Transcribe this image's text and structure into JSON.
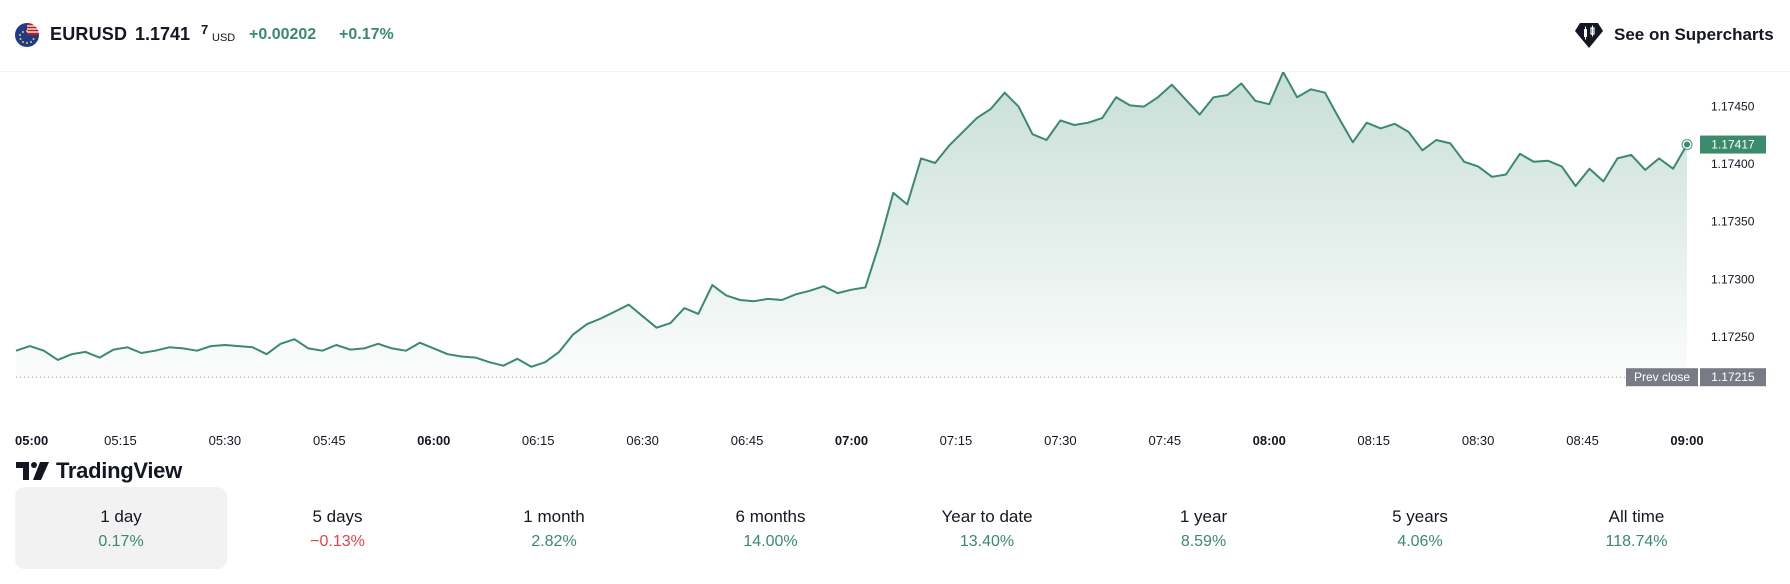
{
  "header": {
    "symbol": "EURUSD",
    "price_main": "1.1741",
    "price_sup": "7",
    "currency": "USD",
    "change_abs": "+0.00202",
    "change_pct": "+0.17%",
    "supercharts_label": "See on Supercharts",
    "flag_icon": "eu-us-flag-icon",
    "supercharts_icon": "supercharts-candle-icon"
  },
  "colors": {
    "line": "#3a8a6c",
    "positive": "#3a8a6c",
    "negative": "#e0444b",
    "last_price_tag": "#3a8a6c",
    "prev_close_tag": "#787b86"
  },
  "logo": {
    "text": "TradingView"
  },
  "chart_data": {
    "type": "area",
    "x_tick_labels": [
      "05:00",
      "05:15",
      "05:30",
      "05:45",
      "06:00",
      "06:15",
      "06:30",
      "06:45",
      "07:00",
      "07:15",
      "07:30",
      "07:45",
      "08:00",
      "08:15",
      "08:30",
      "08:45",
      "09:00"
    ],
    "x_tick_bold": [
      true,
      false,
      false,
      false,
      true,
      false,
      false,
      false,
      true,
      false,
      false,
      false,
      true,
      false,
      false,
      false,
      true
    ],
    "y_tick_labels": [
      "1.17450",
      "1.17400",
      "1.17350",
      "1.17300",
      "1.17250"
    ],
    "y_ticks": [
      1.1745,
      1.174,
      1.1735,
      1.173,
      1.1725
    ],
    "ylim": [
      1.1719,
      1.1748
    ],
    "xlim_minutes": [
      300,
      540
    ],
    "last_price": "1.17417",
    "prev_close_label": "Prev close",
    "prev_close": "1.17215",
    "prev_close_value": 1.17215,
    "series": [
      {
        "minutes": [
          300,
          302,
          304,
          306,
          308,
          310,
          312,
          314,
          316,
          318,
          320,
          322,
          324,
          326,
          328,
          330,
          332,
          334,
          336,
          338,
          340,
          342,
          344,
          346,
          348,
          350,
          352,
          354,
          356,
          358,
          360,
          362,
          364,
          366,
          368,
          370,
          372,
          374,
          376,
          378,
          380,
          382,
          384,
          386,
          388,
          390,
          392,
          394,
          396,
          398,
          400,
          402,
          404,
          406,
          408,
          410,
          412,
          414,
          416,
          418,
          420,
          422,
          424,
          426,
          428,
          430,
          432,
          434,
          436,
          438,
          440,
          442,
          444,
          446,
          448,
          450,
          452,
          454,
          456,
          458,
          460,
          462,
          464,
          466,
          468,
          470,
          472,
          474,
          476,
          478,
          480,
          482,
          484,
          486,
          488,
          490,
          492,
          494,
          496,
          498,
          500,
          502,
          504,
          506,
          508,
          510,
          512,
          514,
          516,
          518,
          520,
          522,
          524,
          526,
          528,
          530,
          532,
          534,
          536,
          538,
          540
        ],
        "values": [
          1.17238,
          1.17242,
          1.17238,
          1.1723,
          1.17235,
          1.17237,
          1.17232,
          1.17239,
          1.17241,
          1.17236,
          1.17238,
          1.17241,
          1.1724,
          1.17238,
          1.17242,
          1.17243,
          1.17242,
          1.17241,
          1.17235,
          1.17244,
          1.17248,
          1.1724,
          1.17238,
          1.17243,
          1.17239,
          1.1724,
          1.17244,
          1.1724,
          1.17238,
          1.17245,
          1.1724,
          1.17235,
          1.17233,
          1.17232,
          1.17228,
          1.17225,
          1.17231,
          1.17224,
          1.17228,
          1.17237,
          1.17252,
          1.17261,
          1.17266,
          1.17272,
          1.17278,
          1.17268,
          1.17258,
          1.17262,
          1.17275,
          1.1727,
          1.17295,
          1.17286,
          1.17282,
          1.17281,
          1.17283,
          1.17282,
          1.17287,
          1.1729,
          1.17294,
          1.17288,
          1.17291,
          1.17293,
          1.17331,
          1.17375,
          1.17365,
          1.17405,
          1.17401,
          1.17416,
          1.17428,
          1.1744,
          1.17448,
          1.17462,
          1.1745,
          1.17426,
          1.17421,
          1.17438,
          1.17434,
          1.17436,
          1.1744,
          1.17458,
          1.17451,
          1.1745,
          1.17458,
          1.17469,
          1.17456,
          1.17443,
          1.17458,
          1.1746,
          1.1747,
          1.17455,
          1.17452,
          1.1748,
          1.17458,
          1.17465,
          1.17462,
          1.1744,
          1.17419,
          1.17436,
          1.17431,
          1.17435,
          1.17428,
          1.17412,
          1.17421,
          1.17418,
          1.17402,
          1.17398,
          1.17389,
          1.17391,
          1.17409,
          1.17402,
          1.17403,
          1.17398,
          1.17381,
          1.17396,
          1.17385,
          1.17405,
          1.17408,
          1.17395,
          1.17405,
          1.17396,
          1.17417
        ]
      }
    ]
  },
  "periods": [
    {
      "label": "1 day",
      "value": "0.17%",
      "sign": "pos",
      "active": true
    },
    {
      "label": "5 days",
      "value": "−0.13%",
      "sign": "neg",
      "active": false
    },
    {
      "label": "1 month",
      "value": "2.82%",
      "sign": "pos",
      "active": false
    },
    {
      "label": "6 months",
      "value": "14.00%",
      "sign": "pos",
      "active": false
    },
    {
      "label": "Year to date",
      "value": "13.40%",
      "sign": "pos",
      "active": false
    },
    {
      "label": "1 year",
      "value": "8.59%",
      "sign": "pos",
      "active": false
    },
    {
      "label": "5 years",
      "value": "4.06%",
      "sign": "pos",
      "active": false
    },
    {
      "label": "All time",
      "value": "118.74%",
      "sign": "pos",
      "active": false
    }
  ]
}
